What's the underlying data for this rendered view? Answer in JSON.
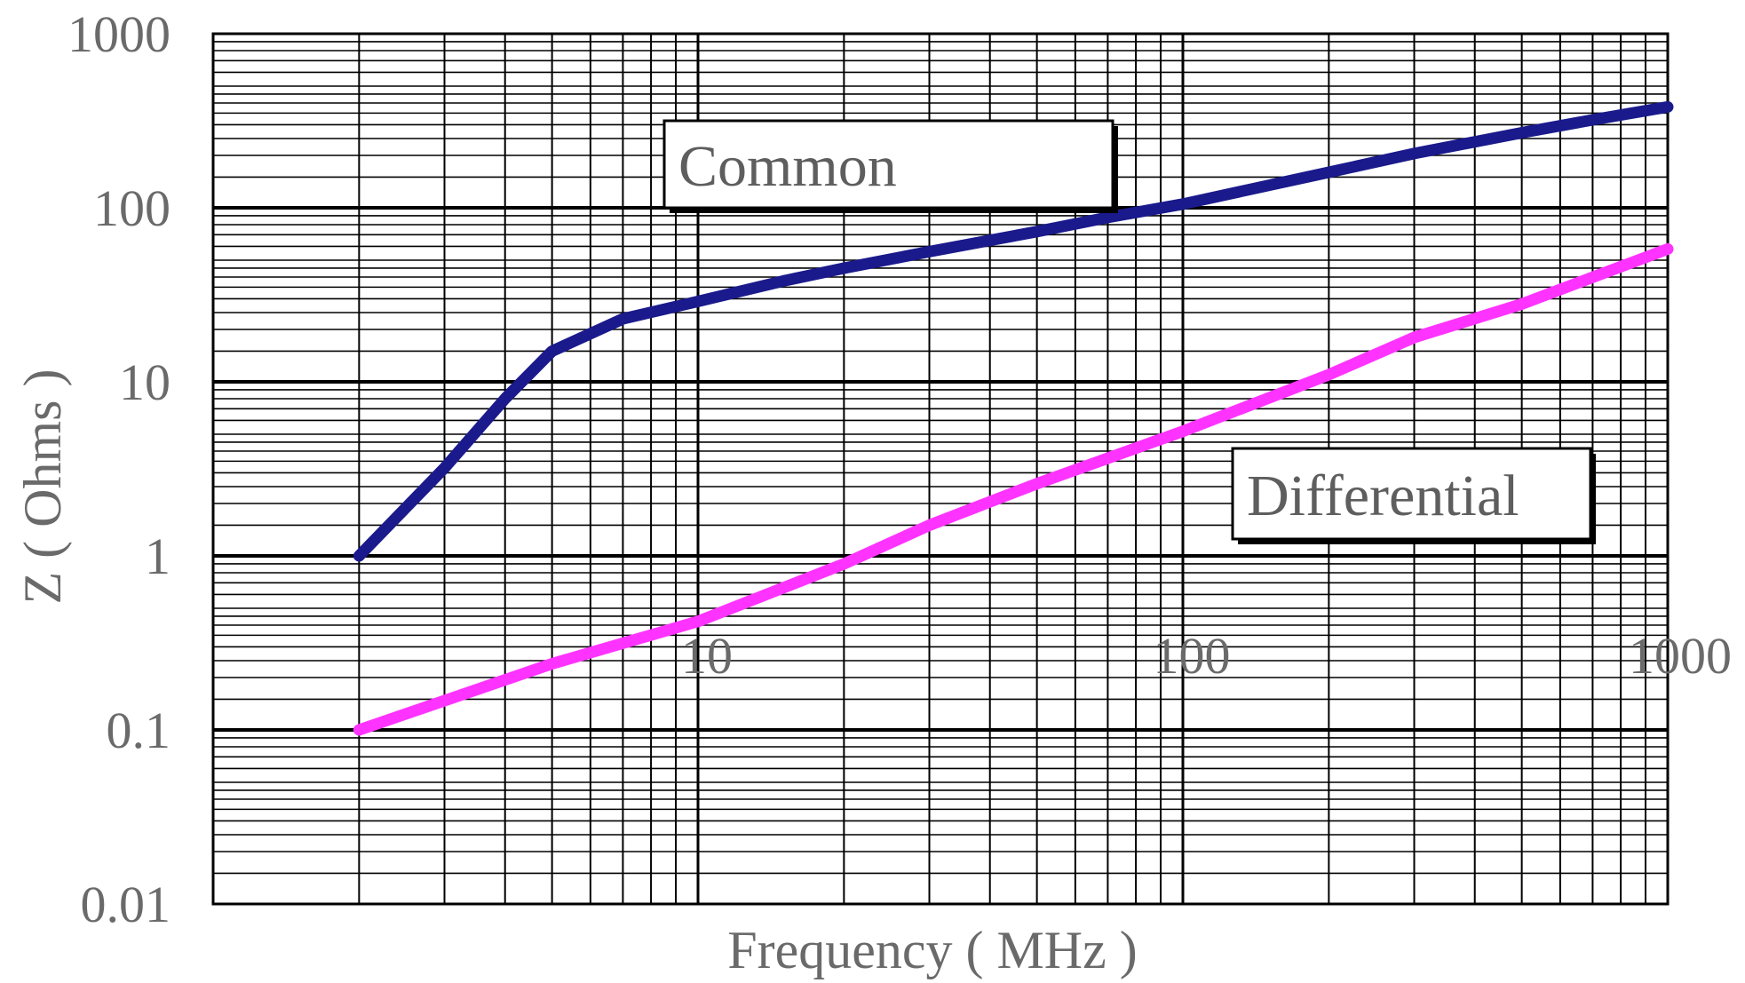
{
  "chart_data": {
    "type": "line",
    "xlabel": "Frequency ( MHz )",
    "ylabel": "Z ( Ohms )",
    "xscale": "log",
    "yscale": "log",
    "xlim": [
      1,
      1000
    ],
    "ylim": [
      0.01,
      1000
    ],
    "grid": true,
    "xticks": [
      {
        "value": 10,
        "label": "10"
      },
      {
        "value": 100,
        "label": "100"
      },
      {
        "value": 1000,
        "label": "1000"
      }
    ],
    "yticks": [
      {
        "value": 1000,
        "label": "1000"
      },
      {
        "value": 100,
        "label": "100"
      },
      {
        "value": 10,
        "label": "10"
      },
      {
        "value": 1,
        "label": "1"
      },
      {
        "value": 0.1,
        "label": "0.1"
      },
      {
        "value": 0.01,
        "label": "0.01"
      }
    ],
    "series": [
      {
        "name": "Common",
        "color": "#1a1a8c",
        "x": [
          2,
          3,
          4,
          5,
          7,
          10,
          15,
          20,
          30,
          50,
          70,
          100,
          200,
          300,
          500,
          700,
          1000
        ],
        "y": [
          1,
          3.2,
          8,
          15,
          23,
          29,
          38,
          45,
          56,
          73,
          88,
          105,
          160,
          205,
          270,
          320,
          380
        ]
      },
      {
        "name": "Differential",
        "color": "#ff33ff",
        "x": [
          2,
          5,
          10,
          20,
          30,
          50,
          100,
          200,
          300,
          500,
          1000
        ],
        "y": [
          0.1,
          0.24,
          0.42,
          0.9,
          1.5,
          2.6,
          5.2,
          11,
          18,
          28,
          58
        ]
      }
    ],
    "annotations": [
      {
        "text": "Common",
        "series": "Common"
      },
      {
        "text": "Differential",
        "series": "Differential"
      }
    ]
  }
}
